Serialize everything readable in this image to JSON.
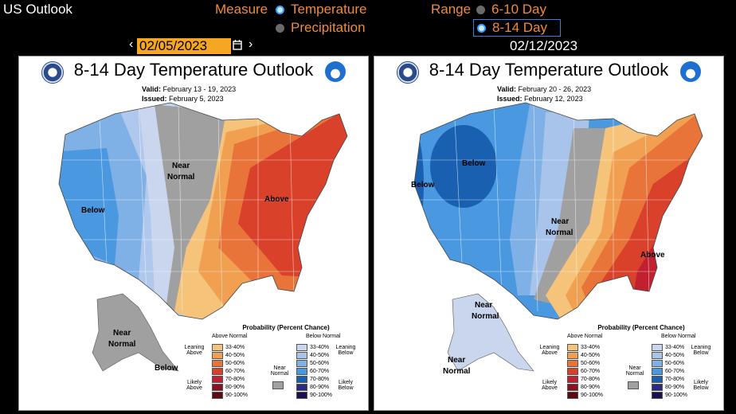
{
  "app": {
    "title": "US Outlook"
  },
  "measure": {
    "label": "Measure",
    "options": [
      {
        "label": "Temperature",
        "selected": true
      },
      {
        "label": "Precipitation",
        "selected": false
      }
    ]
  },
  "range": {
    "label": "Range",
    "options": [
      {
        "label": "6-10 Day",
        "selected": false
      },
      {
        "label": "8-14 Day",
        "selected": true
      }
    ]
  },
  "nav": {
    "date": "02/05/2023",
    "next_date": "02/12/2023",
    "prev": "‹",
    "next": "›"
  },
  "maps": [
    {
      "title": "8-14 Day Temperature Outlook",
      "valid_label": "Valid:",
      "valid": "February 13 - 19, 2023",
      "issued_label": "Issued:",
      "issued": "February 5, 2023",
      "labels": {
        "below": "Below",
        "near1": "Near",
        "near2": "Normal",
        "above": "Above",
        "ak_near1": "Near",
        "ak_near2": "Normal",
        "ak_below": "Below"
      }
    },
    {
      "title": "8-14 Day Temperature Outlook",
      "valid_label": "Valid:",
      "valid": "February 20 - 26, 2023",
      "issued_label": "Issued:",
      "issued": "February 12, 2023",
      "labels": {
        "below_w": "Below",
        "below_n": "Below",
        "near1": "Near",
        "near2": "Normal",
        "above": "Above",
        "ak_near1": "Near",
        "ak_near2": "Normal",
        "ak_near3": "Near",
        "ak_near4": "Normal"
      }
    }
  ],
  "legend": {
    "title": "Probability (Percent Chance)",
    "above_normal": "Above Normal",
    "below_normal": "Below Normal",
    "leaning_above": "Leaning Above",
    "likely_above": "Likely Above",
    "near_normal": "Near Normal",
    "leaning_below": "Leaning Below",
    "likely_below": "Likely Below",
    "above_bins": [
      "33-40%",
      "40-50%",
      "50-60%",
      "60-70%",
      "70-80%",
      "80-90%",
      "90-100%"
    ],
    "below_bins": [
      "33-40%",
      "40-50%",
      "50-60%",
      "60-70%",
      "70-80%",
      "80-90%",
      "90-100%"
    ],
    "above_colors": [
      "#f5c37a",
      "#f0a050",
      "#e8743a",
      "#d9412a",
      "#c02030",
      "#8e1020",
      "#5a0a10"
    ],
    "below_colors": [
      "#c9d6ee",
      "#a9c4ea",
      "#7fb0e6",
      "#4a98e0",
      "#1a60b0",
      "#2a2a80",
      "#1a1050"
    ],
    "near_color": "#a0a0a0"
  },
  "colors": {
    "accent": "#f08a3c",
    "date_bg": "#f5a623",
    "selected": "#3aa0ff"
  }
}
